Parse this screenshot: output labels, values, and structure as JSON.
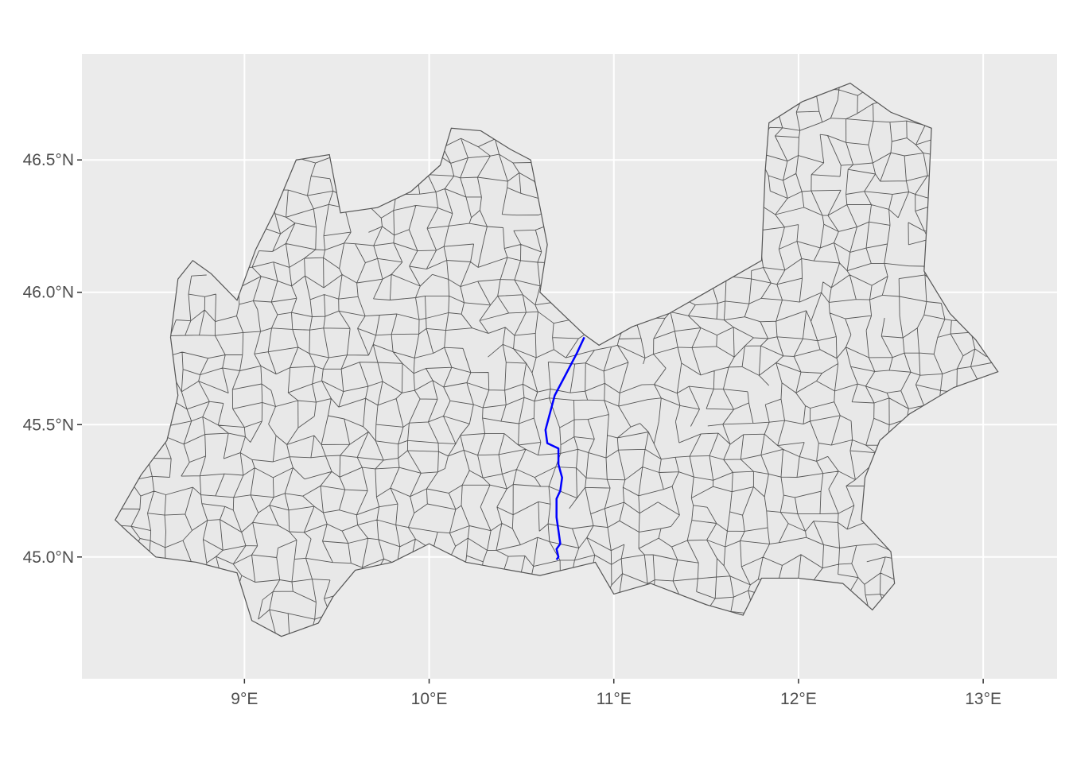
{
  "map": {
    "x_ticks": [
      {
        "lon": 9,
        "label": "9°E"
      },
      {
        "lon": 10,
        "label": "10°E"
      },
      {
        "lon": 11,
        "label": "11°E"
      },
      {
        "lon": 12,
        "label": "12°E"
      },
      {
        "lon": 13,
        "label": "13°E"
      }
    ],
    "y_ticks": [
      {
        "lat": 45.0,
        "label": "45.0°N"
      },
      {
        "lat": 45.5,
        "label": "45.5°N"
      },
      {
        "lat": 46.0,
        "label": "46.0°N"
      },
      {
        "lat": 46.5,
        "label": "46.5°N"
      }
    ],
    "lon_range": [
      8.12,
      13.4
    ],
    "lat_range": [
      44.54,
      46.9
    ],
    "colors": {
      "panel": "#ebebeb",
      "grid": "#ffffff",
      "region_fill": "#e8e8e8",
      "region_border": "#555555",
      "highlight_line": "#0000ff",
      "tick_text": "#4d4d4d"
    },
    "highlight_line_coords": [
      [
        10.84,
        45.83
      ],
      [
        10.8,
        45.77
      ],
      [
        10.74,
        45.69
      ],
      [
        10.68,
        45.61
      ],
      [
        10.63,
        45.48
      ],
      [
        10.64,
        45.43
      ],
      [
        10.7,
        45.41
      ],
      [
        10.7,
        45.35
      ],
      [
        10.72,
        45.3
      ],
      [
        10.71,
        45.25
      ],
      [
        10.69,
        45.22
      ],
      [
        10.69,
        45.15
      ],
      [
        10.7,
        45.1
      ],
      [
        10.71,
        45.05
      ],
      [
        10.69,
        45.03
      ],
      [
        10.7,
        45.0
      ],
      [
        10.69,
        44.99
      ]
    ],
    "region_outline": [
      [
        8.3,
        45.14
      ],
      [
        8.44,
        45.31
      ],
      [
        8.58,
        45.44
      ],
      [
        8.64,
        45.61
      ],
      [
        8.6,
        45.83
      ],
      [
        8.64,
        46.05
      ],
      [
        8.72,
        46.12
      ],
      [
        8.82,
        46.07
      ],
      [
        8.96,
        45.97
      ],
      [
        9.06,
        46.16
      ],
      [
        9.16,
        46.3
      ],
      [
        9.28,
        46.5
      ],
      [
        9.46,
        46.52
      ],
      [
        9.52,
        46.3
      ],
      [
        9.72,
        46.32
      ],
      [
        9.9,
        46.38
      ],
      [
        10.06,
        46.48
      ],
      [
        10.12,
        46.62
      ],
      [
        10.28,
        46.61
      ],
      [
        10.44,
        46.54
      ],
      [
        10.55,
        46.5
      ],
      [
        10.64,
        46.18
      ],
      [
        10.6,
        46.0
      ],
      [
        10.72,
        45.92
      ],
      [
        10.84,
        45.84
      ],
      [
        10.92,
        45.8
      ],
      [
        11.1,
        45.87
      ],
      [
        11.3,
        45.92
      ],
      [
        11.6,
        46.04
      ],
      [
        11.8,
        46.12
      ],
      [
        11.82,
        46.46
      ],
      [
        11.84,
        46.64
      ],
      [
        12.02,
        46.72
      ],
      [
        12.28,
        46.79
      ],
      [
        12.5,
        46.68
      ],
      [
        12.72,
        46.62
      ],
      [
        12.7,
        46.32
      ],
      [
        12.68,
        46.08
      ],
      [
        12.82,
        45.92
      ],
      [
        12.96,
        45.82
      ],
      [
        13.08,
        45.7
      ],
      [
        12.84,
        45.64
      ],
      [
        12.6,
        45.54
      ],
      [
        12.44,
        45.44
      ],
      [
        12.36,
        45.3
      ],
      [
        12.34,
        45.14
      ],
      [
        12.5,
        45.02
      ],
      [
        12.52,
        44.9
      ],
      [
        12.4,
        44.8
      ],
      [
        12.24,
        44.9
      ],
      [
        12.0,
        44.92
      ],
      [
        11.8,
        44.92
      ],
      [
        11.7,
        44.78
      ],
      [
        11.5,
        44.82
      ],
      [
        11.2,
        44.9
      ],
      [
        11.0,
        44.86
      ],
      [
        10.9,
        44.98
      ],
      [
        10.6,
        44.93
      ],
      [
        10.2,
        44.98
      ],
      [
        10.0,
        45.05
      ],
      [
        9.8,
        44.98
      ],
      [
        9.6,
        44.95
      ],
      [
        9.48,
        44.85
      ],
      [
        9.4,
        44.75
      ],
      [
        9.2,
        44.7
      ],
      [
        9.04,
        44.76
      ],
      [
        8.96,
        44.94
      ],
      [
        8.74,
        44.98
      ],
      [
        8.52,
        45.0
      ],
      [
        8.36,
        45.1
      ],
      [
        8.3,
        45.14
      ]
    ]
  }
}
